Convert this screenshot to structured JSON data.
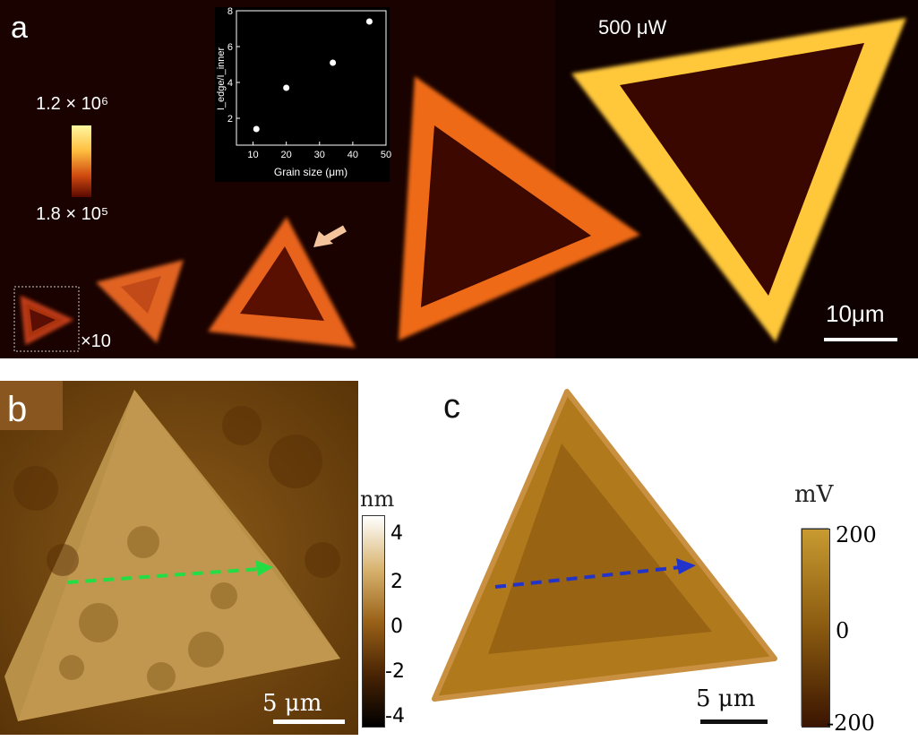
{
  "panel_a": {
    "label": "a",
    "power_label": "500 μW",
    "colorbar_max": "1.2 × 10⁶",
    "colorbar_min": "1.8 × 10⁵",
    "magnification": "×10",
    "scalebar": "10μm",
    "inset_chart": {
      "chart_data": {
        "type": "scatter",
        "x": [
          11,
          20,
          34,
          45
        ],
        "y": [
          1.4,
          3.7,
          5.1,
          7.4
        ],
        "xlabel": "Grain size (μm)",
        "ylabel": "I_edge/I_inner",
        "xlim": [
          5,
          50
        ],
        "ylim": [
          0.5,
          8
        ],
        "xticks": [
          "10",
          "20",
          "30",
          "40",
          "50"
        ],
        "yticks": [
          "2",
          "4",
          "6",
          "8"
        ]
      }
    }
  },
  "panel_b": {
    "label": "b",
    "unit": "nm",
    "ticks": [
      "4",
      "2",
      "0",
      "-2",
      "-4"
    ],
    "scalebar": "5 μm"
  },
  "panel_c": {
    "label": "c",
    "unit": "mV",
    "ticks": [
      "200",
      "0",
      "-200"
    ],
    "scalebar": "5 μm"
  },
  "colors": {
    "pl_background": "#1a0200",
    "pl_edge": "#ffd24a",
    "pl_inner": "#3a0600",
    "afm_green_arrow": "#22dd44",
    "kpfm_blue_arrow": "#2233cc"
  }
}
